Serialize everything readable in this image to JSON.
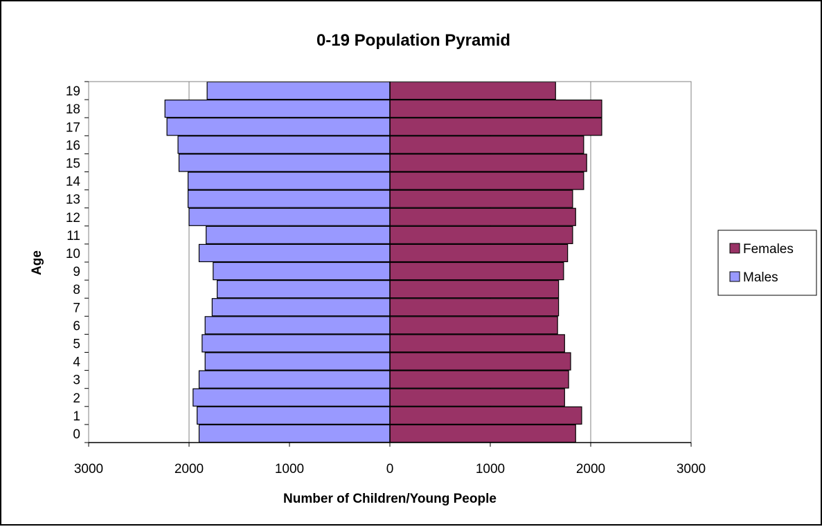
{
  "chart_data": {
    "type": "bar",
    "orientation": "horizontal",
    "title": "0-19 Population Pyramid",
    "xlabel": "Number of Children/Young People",
    "ylabel": "Age",
    "categories": [
      "0",
      "1",
      "2",
      "3",
      "4",
      "5",
      "6",
      "7",
      "8",
      "9",
      "10",
      "11",
      "12",
      "13",
      "14",
      "15",
      "16",
      "17",
      "18",
      "19"
    ],
    "xlim": [
      -3000,
      3000
    ],
    "x_ticks": [
      -3000,
      -2000,
      -1000,
      0,
      1000,
      2000,
      3000
    ],
    "x_tick_labels": [
      "3000",
      "2000",
      "1000",
      "0",
      "1000",
      "2000",
      "3000"
    ],
    "grid": true,
    "legend_position": "right",
    "series": [
      {
        "name": "Females",
        "color": "#993366",
        "values": [
          1850,
          1910,
          1740,
          1780,
          1800,
          1740,
          1670,
          1680,
          1680,
          1730,
          1770,
          1820,
          1850,
          1820,
          1930,
          1960,
          1930,
          2110,
          2110,
          1650
        ]
      },
      {
        "name": "Males",
        "color": "#9999ff",
        "values": [
          -1900,
          -1920,
          -1960,
          -1900,
          -1840,
          -1870,
          -1840,
          -1770,
          -1720,
          -1760,
          -1900,
          -1830,
          -2000,
          -2010,
          -2010,
          -2100,
          -2110,
          -2220,
          -2240,
          -1820
        ]
      }
    ]
  }
}
